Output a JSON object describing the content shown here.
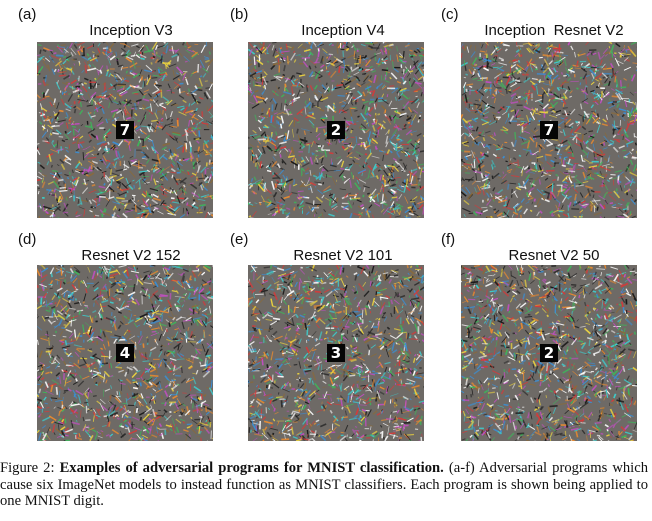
{
  "panels": [
    {
      "label": "(a)",
      "title": "Inception V3",
      "digit": "7"
    },
    {
      "label": "(b)",
      "title": "Inception V4",
      "digit": "2"
    },
    {
      "label": "(c)",
      "title": "Inception  Resnet V2",
      "digit": "7"
    },
    {
      "label": "(d)",
      "title": "Resnet V2 152",
      "digit": "4"
    },
    {
      "label": "(e)",
      "title": "Resnet V2 101",
      "digit": "3"
    },
    {
      "label": "(f)",
      "title": "Resnet V2 50",
      "digit": "2"
    }
  ],
  "caption": {
    "prefix": "Figure 2: ",
    "bold": "Examples of adversarial programs for MNIST classification.",
    "rest": " (a-f) Adversarial programs which cause six ImageNet models to instead function as MNIST classifiers. Each program is shown being applied to one MNIST digit."
  }
}
